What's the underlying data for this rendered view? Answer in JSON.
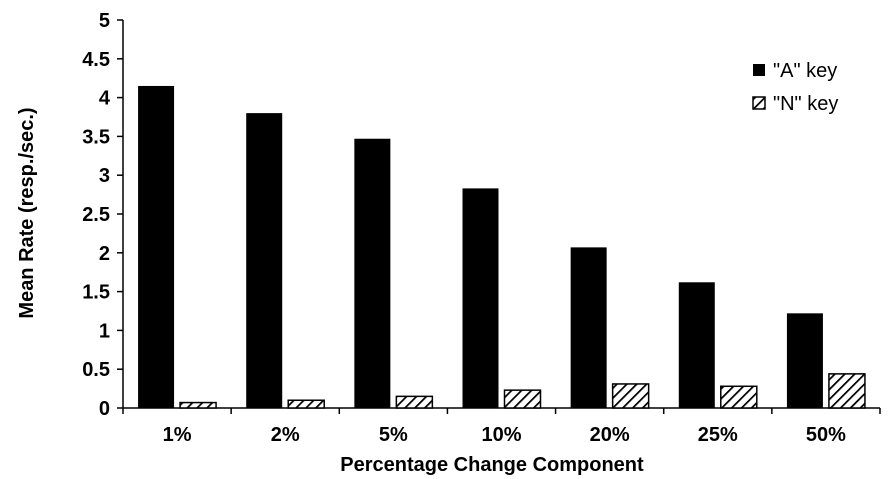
{
  "chart_data": {
    "type": "bar",
    "title": "",
    "xlabel": "Percentage Change Component",
    "ylabel": "Mean Rate (resp./sec.)",
    "categories": [
      "1%",
      "2%",
      "5%",
      "10%",
      "20%",
      "25%",
      "50%"
    ],
    "series": [
      {
        "name": "\"A\" key",
        "color": "#000000",
        "fill": "solid",
        "values": [
          4.15,
          3.8,
          3.47,
          2.83,
          2.07,
          1.62,
          1.22
        ]
      },
      {
        "name": "\"N\" key",
        "color": "#000000",
        "fill": "diagonal-hatch",
        "values": [
          0.07,
          0.1,
          0.15,
          0.23,
          0.31,
          0.28,
          0.44
        ]
      }
    ],
    "ylim": [
      0,
      5
    ],
    "yticks": [
      "0",
      "0.5",
      "1",
      "1.5",
      "2",
      "2.5",
      "3",
      "3.5",
      "4",
      "4.5",
      "5"
    ],
    "grid": false,
    "legend": "top-right"
  }
}
